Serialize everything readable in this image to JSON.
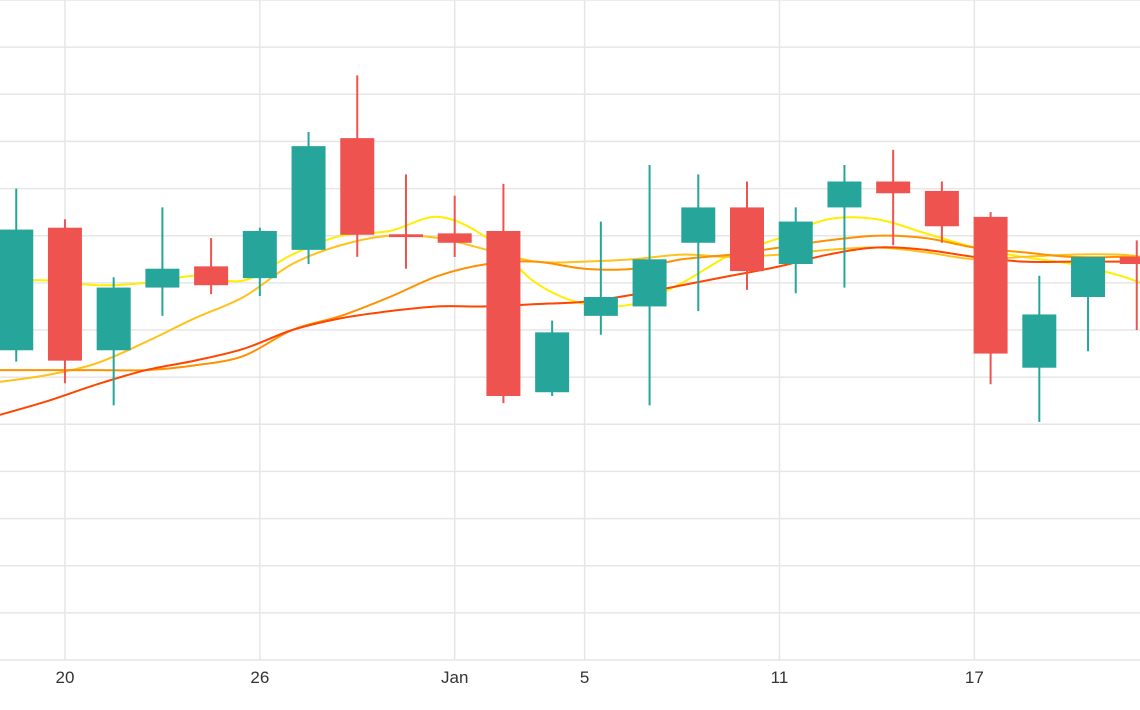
{
  "chart_data": {
    "type": "candlestick",
    "title": "",
    "xlabel": "",
    "ylabel": "",
    "x_axis_ticks": [
      "20",
      "26",
      "Jan",
      "5",
      "11",
      "17"
    ],
    "x_tick_days": [
      20,
      26,
      32,
      36,
      42,
      48
    ],
    "x_range_days": [
      18,
      53.1
    ],
    "y_range": [
      0,
      14
    ],
    "grid": true,
    "legend": "none",
    "colors": {
      "up": "#26a69a",
      "down": "#ef5350",
      "ma_yellow": "#ffee00",
      "ma_gold": "#ffc21a",
      "ma_orange": "#ff9100",
      "ma_red": "#ff4500",
      "grid": "#e6e6e6"
    },
    "candles": [
      {
        "day": 18.5,
        "open": 6.57,
        "high": 10.0,
        "low": 6.33,
        "close": 9.13
      },
      {
        "day": 20.0,
        "open": 9.17,
        "high": 9.35,
        "low": 5.87,
        "close": 6.35
      },
      {
        "day": 21.5,
        "open": 6.57,
        "high": 8.12,
        "low": 5.4,
        "close": 7.9
      },
      {
        "day": 23.0,
        "open": 7.9,
        "high": 9.6,
        "low": 7.3,
        "close": 8.3
      },
      {
        "day": 24.5,
        "open": 8.35,
        "high": 8.95,
        "low": 7.76,
        "close": 7.95
      },
      {
        "day": 26.0,
        "open": 8.1,
        "high": 9.17,
        "low": 7.72,
        "close": 9.1
      },
      {
        "day": 27.5,
        "open": 8.7,
        "high": 11.2,
        "low": 8.4,
        "close": 10.9
      },
      {
        "day": 29.0,
        "open": 11.07,
        "high": 12.4,
        "low": 8.55,
        "close": 9.02
      },
      {
        "day": 30.5,
        "open": 9.03,
        "high": 10.3,
        "low": 8.3,
        "close": 8.97
      },
      {
        "day": 32.0,
        "open": 9.05,
        "high": 9.85,
        "low": 8.55,
        "close": 8.85
      },
      {
        "day": 33.5,
        "open": 9.1,
        "high": 10.1,
        "low": 5.45,
        "close": 5.6
      },
      {
        "day": 35.0,
        "open": 5.68,
        "high": 7.2,
        "low": 5.6,
        "close": 6.95
      },
      {
        "day": 36.5,
        "open": 7.3,
        "high": 9.3,
        "low": 6.9,
        "close": 7.7
      },
      {
        "day": 38.0,
        "open": 7.5,
        "high": 10.5,
        "low": 5.4,
        "close": 8.5
      },
      {
        "day": 39.5,
        "open": 8.85,
        "high": 10.3,
        "low": 7.4,
        "close": 9.6
      },
      {
        "day": 41.0,
        "open": 9.6,
        "high": 10.15,
        "low": 7.85,
        "close": 8.25
      },
      {
        "day": 42.5,
        "open": 8.4,
        "high": 9.6,
        "low": 7.78,
        "close": 9.3
      },
      {
        "day": 44.0,
        "open": 9.6,
        "high": 10.5,
        "low": 7.9,
        "close": 10.15
      },
      {
        "day": 45.5,
        "open": 10.15,
        "high": 10.82,
        "low": 8.8,
        "close": 9.9
      },
      {
        "day": 47.0,
        "open": 9.95,
        "high": 10.15,
        "low": 8.85,
        "close": 9.2
      },
      {
        "day": 48.5,
        "open": 9.4,
        "high": 9.5,
        "low": 5.85,
        "close": 6.5
      },
      {
        "day": 50.0,
        "open": 6.2,
        "high": 8.15,
        "low": 5.05,
        "close": 7.33
      },
      {
        "day": 51.5,
        "open": 7.7,
        "high": 8.45,
        "low": 6.55,
        "close": 8.55
      },
      {
        "day": 53.0,
        "open": 8.55,
        "high": 8.9,
        "low": 7.0,
        "close": 8.4
      }
    ],
    "series": [
      {
        "color": "#ffee00",
        "x": [
          18,
          19.5,
          21,
          22.5,
          24,
          25.5,
          27,
          28.5,
          30,
          31.5,
          33,
          34.5,
          36,
          37.5,
          39,
          40.5,
          42,
          43.5,
          45,
          46.5,
          48,
          49.5,
          51,
          52.5,
          53.1
        ],
        "y": [
          8.05,
          8.05,
          7.95,
          8.0,
          8.15,
          8.05,
          8.6,
          9.0,
          9.1,
          9.4,
          8.95,
          8.0,
          7.55,
          7.55,
          8.0,
          8.6,
          8.95,
          9.35,
          9.35,
          9.05,
          8.75,
          8.55,
          8.4,
          8.15,
          8.0
        ]
      },
      {
        "color": "#ffc21a",
        "x": [
          18,
          19.5,
          21,
          22.5,
          24,
          25.5,
          27,
          28.5,
          30,
          31.5,
          33,
          34.5,
          36,
          37.5,
          39,
          40.5,
          42,
          43.5,
          45,
          46.5,
          48,
          49.5,
          51,
          52.5,
          53.1
        ],
        "y": [
          5.9,
          6.05,
          6.3,
          6.75,
          7.25,
          7.7,
          8.4,
          8.8,
          9.0,
          8.95,
          8.7,
          8.45,
          8.45,
          8.5,
          8.6,
          8.55,
          8.6,
          8.7,
          8.75,
          8.65,
          8.5,
          8.55,
          8.6,
          8.6,
          8.55
        ]
      },
      {
        "color": "#ff9100",
        "x": [
          18,
          19.5,
          21,
          22.5,
          24,
          25.5,
          27,
          28.5,
          30,
          31.5,
          33,
          34.5,
          36,
          37.5,
          39,
          40.5,
          42,
          43.5,
          45,
          46.5,
          48,
          49.5,
          51,
          52.5,
          53.1
        ],
        "y": [
          6.15,
          6.15,
          6.15,
          6.15,
          6.25,
          6.45,
          7.0,
          7.3,
          7.7,
          8.15,
          8.4,
          8.45,
          8.3,
          8.3,
          8.5,
          8.6,
          8.75,
          8.9,
          9.0,
          8.95,
          8.75,
          8.65,
          8.55,
          8.55,
          8.55
        ]
      },
      {
        "color": "#ff4500",
        "x": [
          18,
          19.5,
          21,
          22.5,
          24,
          25.5,
          27,
          28.5,
          30,
          31.5,
          33,
          34.5,
          36,
          37.5,
          39,
          40.5,
          42,
          43.5,
          45,
          46.5,
          48,
          49.5,
          51,
          52.5,
          53.1
        ],
        "y": [
          5.2,
          5.5,
          5.85,
          6.15,
          6.35,
          6.6,
          7.0,
          7.25,
          7.4,
          7.5,
          7.5,
          7.55,
          7.6,
          7.75,
          7.95,
          8.15,
          8.35,
          8.6,
          8.75,
          8.7,
          8.55,
          8.45,
          8.45,
          8.45,
          8.45
        ]
      }
    ]
  }
}
